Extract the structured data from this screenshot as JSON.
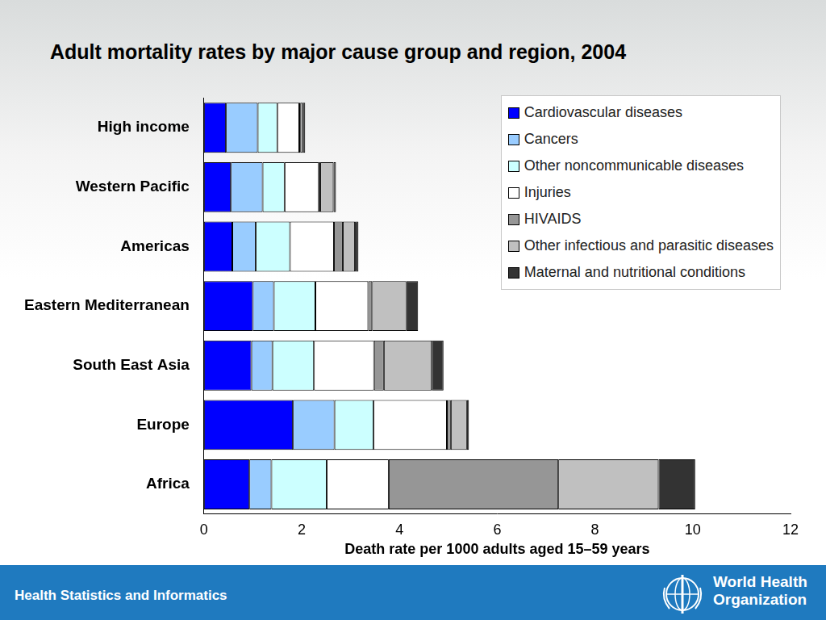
{
  "chart_data": {
    "type": "bar",
    "orientation": "horizontal",
    "stacked": true,
    "title": "Adult mortality rates by major cause group and region, 2004",
    "x_label": "Death rate per 1000 adults aged 15–59 years",
    "categories": [
      "High income",
      "Western Pacific",
      "Americas",
      "Eastern Mediterranean",
      "South East Asia",
      "Europe",
      "Africa"
    ],
    "series": [
      {
        "name": "Cardiovascular diseases",
        "color": "#0000ff",
        "values": [
          0.45,
          0.55,
          0.58,
          1.0,
          0.97,
          1.82,
          0.93
        ]
      },
      {
        "name": "Cancers",
        "color": "#99ccff",
        "values": [
          0.65,
          0.65,
          0.48,
          0.43,
          0.43,
          0.85,
          0.45
        ]
      },
      {
        "name": "Other noncommunicable diseases",
        "color": "#ccffff",
        "values": [
          0.4,
          0.45,
          0.7,
          0.85,
          0.85,
          0.8,
          1.13
        ]
      },
      {
        "name": "Injuries",
        "color": "#ffffff",
        "values": [
          0.45,
          0.7,
          0.9,
          1.08,
          1.23,
          1.5,
          1.27
        ]
      },
      {
        "name": "HIVAIDS",
        "color": "#969696",
        "values": [
          0.02,
          0.03,
          0.18,
          0.08,
          0.2,
          0.08,
          3.47
        ]
      },
      {
        "name": "Other infectious and parasitic diseases",
        "color": "#c0c0c0",
        "values": [
          0.05,
          0.27,
          0.25,
          0.7,
          0.98,
          0.33,
          2.05
        ]
      },
      {
        "name": "Maternal and nutritional conditions",
        "color": "#333333",
        "values": [
          0.05,
          0.05,
          0.07,
          0.24,
          0.24,
          0.04,
          0.75
        ]
      }
    ],
    "xlim": [
      0,
      12
    ],
    "xticks": [
      0,
      2,
      4,
      6,
      8,
      10,
      12
    ],
    "grid": false,
    "legend": "top-right"
  },
  "footer": {
    "text": "Health Statistics and Informatics",
    "logo_text": [
      "World Health",
      "Organization"
    ]
  }
}
